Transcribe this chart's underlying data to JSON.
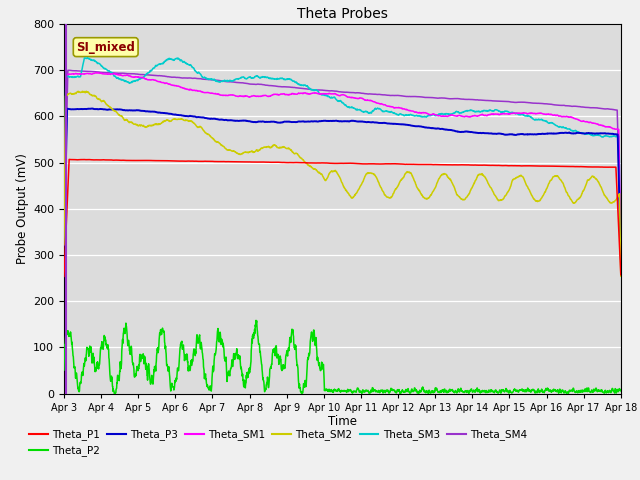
{
  "title": "Theta Probes",
  "xlabel": "Time",
  "ylabel": "Probe Output (mV)",
  "ylim": [
    0,
    800
  ],
  "annotation": "SI_mixed",
  "plot_bg": "#dcdcdc",
  "fig_bg": "#f0f0f0",
  "colors": {
    "Theta_P1": "#ff0000",
    "Theta_P2": "#00dd00",
    "Theta_P3": "#0000cc",
    "Theta_SM1": "#ff00ff",
    "Theta_SM2": "#cccc00",
    "Theta_SM3": "#00cccc",
    "Theta_SM4": "#9933cc"
  },
  "yticks": [
    0,
    100,
    200,
    300,
    400,
    500,
    600,
    700,
    800
  ],
  "xtick_labels": [
    "Apr 3",
    "Apr 4",
    "Apr 5",
    "Apr 6",
    "Apr 7",
    "Apr 8",
    "Apr 9",
    "Apr 10",
    "Apr 11",
    "Apr 12",
    "Apr 13",
    "Apr 14",
    "Apr 15",
    "Apr 16",
    "Apr 17",
    "Apr 18"
  ],
  "xtick_positions": [
    0,
    24,
    48,
    72,
    96,
    120,
    144,
    168,
    192,
    216,
    240,
    264,
    288,
    312,
    336,
    360
  ]
}
